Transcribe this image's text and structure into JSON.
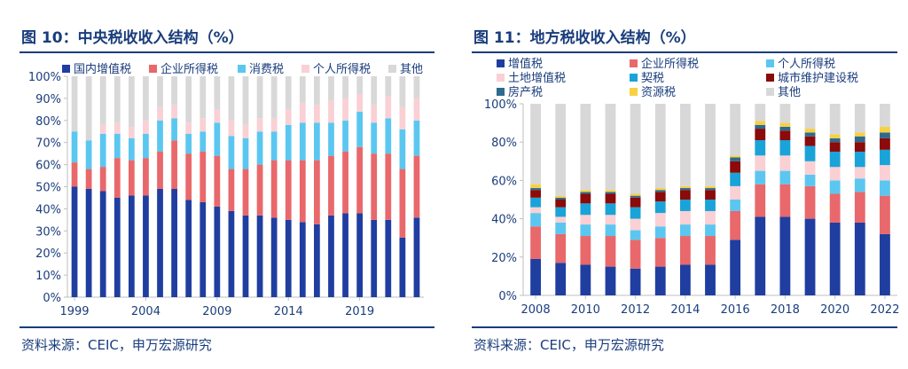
{
  "chart_data": [
    {
      "type": "bar",
      "stacked": true,
      "title": "图 10：中央税收收入结构（%）",
      "source": "资料来源：CEIC，申万宏源研究",
      "ylim": [
        0,
        100
      ],
      "yticks": [
        "0%",
        "10%",
        "20%",
        "30%",
        "40%",
        "50%",
        "60%",
        "70%",
        "80%",
        "90%",
        "100%"
      ],
      "xticks": [
        "1999",
        "2004",
        "2009",
        "2014",
        "2019"
      ],
      "legend": [
        "国内增值税",
        "企业所得税",
        "消费税",
        "个人所得税",
        "其他"
      ],
      "colors": [
        "#1f3ea0",
        "#e8686b",
        "#5bc7f0",
        "#f9d0d4",
        "#d8d8d8"
      ],
      "categories": [
        "1999",
        "2000",
        "2001",
        "2002",
        "2003",
        "2004",
        "2005",
        "2006",
        "2007",
        "2008",
        "2009",
        "2010",
        "2011",
        "2012",
        "2013",
        "2014",
        "2015",
        "2016",
        "2017",
        "2018",
        "2019",
        "2020",
        "2021",
        "2022",
        "2023"
      ],
      "series": [
        {
          "name": "国内增值税",
          "values": [
            50,
            49,
            48,
            45,
            46,
            46,
            49,
            49,
            44,
            43,
            41,
            39,
            37,
            37,
            36,
            35,
            34,
            33,
            37,
            38,
            38,
            35,
            35,
            27,
            36
          ]
        },
        {
          "name": "企业所得税",
          "values": [
            11,
            9,
            11,
            18,
            16,
            17,
            17,
            22,
            21,
            23,
            23,
            19,
            21,
            23,
            26,
            27,
            28,
            29,
            27,
            28,
            30,
            30,
            30,
            31,
            28
          ]
        },
        {
          "name": "消费税",
          "values": [
            14,
            13,
            15,
            11,
            10,
            11,
            14,
            10,
            9,
            9,
            15,
            15,
            14,
            15,
            13,
            16,
            17,
            17,
            15,
            14,
            16,
            14,
            16,
            18,
            16
          ]
        },
        {
          "name": "个人所得税",
          "values": [
            0,
            0,
            4,
            5,
            5,
            6,
            6,
            6,
            5,
            6,
            6,
            7,
            6,
            6,
            6,
            7,
            9,
            8,
            10,
            10,
            8,
            8,
            10,
            10,
            10
          ]
        },
        {
          "name": "其他",
          "values": [
            25,
            29,
            22,
            21,
            23,
            20,
            14,
            13,
            21,
            19,
            15,
            20,
            22,
            19,
            19,
            15,
            12,
            13,
            11,
            10,
            8,
            13,
            9,
            14,
            10
          ]
        }
      ]
    },
    {
      "type": "bar",
      "stacked": true,
      "title": "图 11：地方税收收入结构（%）",
      "source": "资料来源：CEIC，申万宏源研究",
      "ylim": [
        0,
        100
      ],
      "yticks": [
        "0%",
        "20%",
        "40%",
        "60%",
        "80%",
        "100%"
      ],
      "xticks": [
        "2008",
        "2010",
        "2012",
        "2014",
        "2016",
        "2018",
        "2020",
        "2022"
      ],
      "legend": [
        "增值税",
        "企业所得税",
        "个人所得税",
        "土地增值税",
        "契税",
        "城市维护建设税",
        "房产税",
        "资源税",
        "其他"
      ],
      "colors": [
        "#1f3ea0",
        "#e8686b",
        "#5bc7f0",
        "#f9d0d4",
        "#1aa3d8",
        "#8b0a0a",
        "#2e6a8e",
        "#f6d142",
        "#d8d8d8"
      ],
      "categories": [
        "2008",
        "2009",
        "2010",
        "2011",
        "2012",
        "2013",
        "2014",
        "2015",
        "2016",
        "2017",
        "2018",
        "2019",
        "2020",
        "2021",
        "2022"
      ],
      "series": [
        {
          "name": "增值税",
          "values": [
            19,
            17,
            16,
            15,
            14,
            15,
            16,
            16,
            29,
            41,
            41,
            40,
            38,
            38,
            32
          ]
        },
        {
          "name": "企业所得税",
          "values": [
            17,
            15,
            15,
            16,
            15,
            15,
            15,
            15,
            15,
            17,
            17,
            17,
            15,
            16,
            20
          ]
        },
        {
          "name": "个人所得税",
          "values": [
            7,
            6,
            6,
            6,
            5,
            6,
            6,
            6,
            6,
            7,
            7,
            6,
            7,
            7,
            8
          ]
        },
        {
          "name": "土地增值税",
          "values": [
            3,
            3,
            5,
            5,
            6,
            7,
            7,
            7,
            7,
            8,
            8,
            7,
            7,
            6,
            8
          ]
        },
        {
          "name": "契税",
          "values": [
            5,
            5,
            6,
            6,
            6,
            6,
            6,
            6,
            7,
            8,
            8,
            8,
            8,
            8,
            8
          ]
        },
        {
          "name": "城市维护建设税",
          "values": [
            4,
            4,
            5,
            5,
            5,
            5,
            5,
            5,
            6,
            6,
            5,
            5,
            5,
            5,
            6
          ]
        },
        {
          "name": "房产税",
          "values": [
            1,
            1,
            1,
            1,
            1,
            1,
            1,
            1,
            2,
            2,
            2,
            2,
            2,
            3,
            3
          ]
        },
        {
          "name": "资源税",
          "values": [
            2,
            1,
            1,
            1,
            1,
            1,
            1,
            1,
            1,
            2,
            2,
            2,
            2,
            2,
            3
          ]
        },
        {
          "name": "其他",
          "values": [
            42,
            48,
            45,
            45,
            47,
            44,
            43,
            43,
            27,
            9,
            10,
            13,
            16,
            15,
            12
          ]
        }
      ]
    }
  ]
}
